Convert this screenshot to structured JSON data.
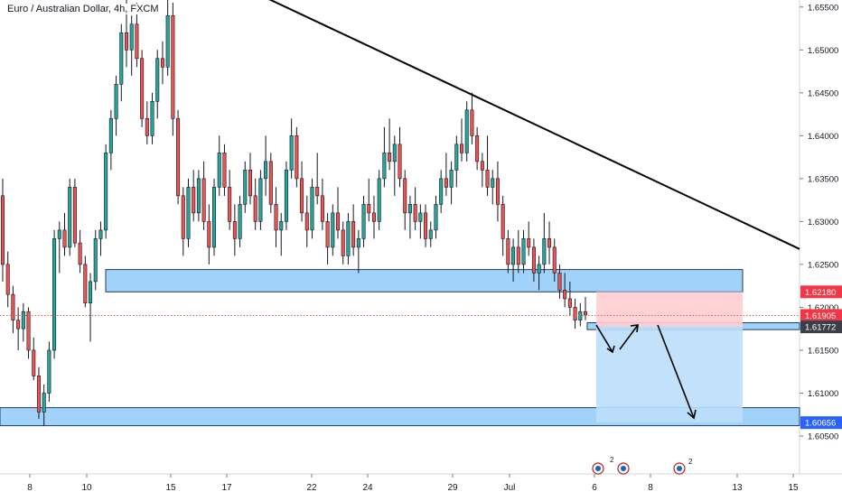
{
  "header": {
    "symbol_title": "Euro / Australian Dollar, 4h, FXCM"
  },
  "colors": {
    "up": "#26a69a",
    "down": "#ef5350",
    "zone_fill": "#90caf9",
    "zone_stroke": "#1e3a5f",
    "stop_fill": "#ffcdd2",
    "target_fill": "#bbdefb",
    "badge_red": "#f23645",
    "badge_dark": "#3b3f47",
    "badge_blue": "#2962ff",
    "trendline": "#000000"
  },
  "chart_data": {
    "type": "candlestick",
    "instrument": "EURAUD",
    "timeframe": "4h",
    "ylim": [
      1.6015,
      1.6555
    ],
    "price_axis": {
      "ticks": [
        "1.65500",
        "1.65000",
        "1.64500",
        "1.64000",
        "1.63500",
        "1.63000",
        "1.62500",
        "1.62000",
        "1.61500",
        "1.61000",
        "1.60500"
      ],
      "badges": [
        {
          "label": "1.62180",
          "value": 1.6218,
          "style": "red"
        },
        {
          "label": "1.61905",
          "value": 1.61905,
          "style": "red"
        },
        {
          "label": "1.61772",
          "value": 1.61772,
          "style": "dark"
        },
        {
          "label": "1.60656",
          "value": 1.60656,
          "style": "blue"
        }
      ]
    },
    "time_axis": {
      "labels": [
        "8",
        "10",
        "15",
        "17",
        "22",
        "24",
        "29",
        "Jul",
        "6",
        "8",
        "13",
        "15"
      ]
    },
    "current_price": 1.61905,
    "zones": [
      {
        "name": "resistance-zone",
        "from": 1.6218,
        "to": 1.6244
      },
      {
        "name": "entry-zone",
        "from": 1.6174,
        "to": 1.6182
      },
      {
        "name": "support-zone",
        "from": 1.6062,
        "to": 1.6083
      }
    ],
    "position": {
      "entry": 1.61772,
      "stop": 1.6218,
      "target": 1.60656
    },
    "trendline": {
      "from": 1.6563,
      "to": 1.6268
    },
    "event_markers": [
      "2",
      "2"
    ],
    "ohlc_sequence": [
      [
        1.633,
        1.635,
        1.623,
        1.625
      ],
      [
        1.625,
        1.6265,
        1.62,
        1.6215
      ],
      [
        1.6215,
        1.6225,
        1.617,
        1.6185
      ],
      [
        1.6185,
        1.62,
        1.615,
        1.6175
      ],
      [
        1.6175,
        1.6205,
        1.616,
        1.6195
      ],
      [
        1.6195,
        1.62,
        1.614,
        1.615
      ],
      [
        1.615,
        1.6165,
        1.6115,
        1.612
      ],
      [
        1.612,
        1.613,
        1.607,
        1.6078
      ],
      [
        1.6078,
        1.611,
        1.6062,
        1.61
      ],
      [
        1.61,
        1.616,
        1.609,
        1.615
      ],
      [
        1.615,
        1.629,
        1.614,
        1.628
      ],
      [
        1.628,
        1.63,
        1.624,
        1.629
      ],
      [
        1.629,
        1.631,
        1.626,
        1.627
      ],
      [
        1.627,
        1.635,
        1.626,
        1.634
      ],
      [
        1.634,
        1.635,
        1.627,
        1.6275
      ],
      [
        1.6275,
        1.629,
        1.624,
        1.625
      ],
      [
        1.625,
        1.626,
        1.62,
        1.6205
      ],
      [
        1.6205,
        1.624,
        1.616,
        1.623
      ],
      [
        1.623,
        1.629,
        1.622,
        1.628
      ],
      [
        1.628,
        1.63,
        1.626,
        1.629
      ],
      [
        1.629,
        1.639,
        1.628,
        1.638
      ],
      [
        1.638,
        1.643,
        1.636,
        1.642
      ],
      [
        1.642,
        1.647,
        1.64,
        1.646
      ],
      [
        1.646,
        1.653,
        1.644,
        1.652
      ],
      [
        1.652,
        1.656,
        1.648,
        1.65
      ],
      [
        1.65,
        1.654,
        1.647,
        1.653
      ],
      [
        1.653,
        1.6555,
        1.648,
        1.649
      ],
      [
        1.649,
        1.65,
        1.641,
        1.642
      ],
      [
        1.642,
        1.644,
        1.639,
        1.64
      ],
      [
        1.64,
        1.645,
        1.639,
        1.644
      ],
      [
        1.644,
        1.65,
        1.642,
        1.649
      ],
      [
        1.649,
        1.651,
        1.646,
        1.648
      ],
      [
        1.648,
        1.656,
        1.647,
        1.654
      ],
      [
        1.654,
        1.6555,
        1.64,
        1.642
      ],
      [
        1.642,
        1.643,
        1.632,
        1.633
      ],
      [
        1.633,
        1.634,
        1.626,
        1.628
      ],
      [
        1.628,
        1.635,
        1.627,
        1.634
      ],
      [
        1.634,
        1.636,
        1.63,
        1.631
      ],
      [
        1.631,
        1.636,
        1.63,
        1.635
      ],
      [
        1.635,
        1.637,
        1.629,
        1.63
      ],
      [
        1.63,
        1.632,
        1.625,
        1.627
      ],
      [
        1.627,
        1.635,
        1.626,
        1.634
      ],
      [
        1.634,
        1.64,
        1.633,
        1.638
      ],
      [
        1.638,
        1.639,
        1.633,
        1.634
      ],
      [
        1.634,
        1.636,
        1.629,
        1.63
      ],
      [
        1.63,
        1.632,
        1.626,
        1.628
      ],
      [
        1.628,
        1.633,
        1.627,
        1.632
      ],
      [
        1.632,
        1.637,
        1.631,
        1.636
      ],
      [
        1.636,
        1.638,
        1.632,
        1.633
      ],
      [
        1.633,
        1.635,
        1.629,
        1.63
      ],
      [
        1.63,
        1.636,
        1.629,
        1.635
      ],
      [
        1.635,
        1.64,
        1.633,
        1.637
      ],
      [
        1.637,
        1.638,
        1.631,
        1.632
      ],
      [
        1.632,
        1.634,
        1.627,
        1.629
      ],
      [
        1.629,
        1.631,
        1.626,
        1.63
      ],
      [
        1.63,
        1.637,
        1.629,
        1.636
      ],
      [
        1.636,
        1.642,
        1.635,
        1.64
      ],
      [
        1.64,
        1.641,
        1.634,
        1.635
      ],
      [
        1.635,
        1.637,
        1.63,
        1.631
      ],
      [
        1.631,
        1.633,
        1.627,
        1.629
      ],
      [
        1.629,
        1.635,
        1.628,
        1.634
      ],
      [
        1.634,
        1.638,
        1.632,
        1.633
      ],
      [
        1.633,
        1.635,
        1.629,
        1.63
      ],
      [
        1.63,
        1.631,
        1.625,
        1.627
      ],
      [
        1.627,
        1.632,
        1.626,
        1.631
      ],
      [
        1.631,
        1.634,
        1.628,
        1.629
      ],
      [
        1.629,
        1.63,
        1.625,
        1.626
      ],
      [
        1.626,
        1.631,
        1.625,
        1.63
      ],
      [
        1.63,
        1.632,
        1.626,
        1.627
      ],
      [
        1.627,
        1.629,
        1.624,
        1.628
      ],
      [
        1.628,
        1.633,
        1.627,
        1.632
      ],
      [
        1.632,
        1.635,
        1.63,
        1.631
      ],
      [
        1.631,
        1.633,
        1.628,
        1.63
      ],
      [
        1.63,
        1.636,
        1.629,
        1.635
      ],
      [
        1.635,
        1.641,
        1.634,
        1.638
      ],
      [
        1.638,
        1.642,
        1.636,
        1.637
      ],
      [
        1.637,
        1.64,
        1.633,
        1.639
      ],
      [
        1.639,
        1.641,
        1.634,
        1.635
      ],
      [
        1.635,
        1.636,
        1.629,
        1.631
      ],
      [
        1.631,
        1.633,
        1.628,
        1.632
      ],
      [
        1.632,
        1.634,
        1.629,
        1.63
      ],
      [
        1.63,
        1.632,
        1.628,
        1.631
      ],
      [
        1.631,
        1.632,
        1.627,
        1.628
      ],
      [
        1.628,
        1.63,
        1.627,
        1.629
      ],
      [
        1.629,
        1.633,
        1.628,
        1.632
      ],
      [
        1.632,
        1.636,
        1.631,
        1.635
      ],
      [
        1.635,
        1.638,
        1.633,
        1.634
      ],
      [
        1.634,
        1.637,
        1.632,
        1.636
      ],
      [
        1.636,
        1.64,
        1.634,
        1.639
      ],
      [
        1.639,
        1.642,
        1.637,
        1.638
      ],
      [
        1.638,
        1.644,
        1.637,
        1.643
      ],
      [
        1.643,
        1.645,
        1.639,
        1.64
      ],
      [
        1.64,
        1.641,
        1.636,
        1.637
      ],
      [
        1.637,
        1.638,
        1.634,
        1.636
      ],
      [
        1.636,
        1.64,
        1.633,
        1.634
      ],
      [
        1.634,
        1.636,
        1.632,
        1.635
      ],
      [
        1.635,
        1.637,
        1.63,
        1.632
      ],
      [
        1.632,
        1.633,
        1.626,
        1.628
      ],
      [
        1.628,
        1.629,
        1.624,
        1.625
      ],
      [
        1.625,
        1.628,
        1.623,
        1.627
      ],
      [
        1.627,
        1.629,
        1.624,
        1.625
      ],
      [
        1.625,
        1.629,
        1.624,
        1.628
      ],
      [
        1.628,
        1.63,
        1.626,
        1.627
      ],
      [
        1.627,
        1.628,
        1.623,
        1.624
      ],
      [
        1.624,
        1.626,
        1.622,
        1.625
      ],
      [
        1.625,
        1.631,
        1.624,
        1.628
      ],
      [
        1.628,
        1.63,
        1.625,
        1.627
      ],
      [
        1.627,
        1.628,
        1.623,
        1.624
      ],
      [
        1.624,
        1.625,
        1.621,
        1.622
      ],
      [
        1.622,
        1.624,
        1.62,
        1.621
      ],
      [
        1.621,
        1.623,
        1.619,
        1.62
      ],
      [
        1.62,
        1.621,
        1.6175,
        1.6185
      ],
      [
        1.6185,
        1.6205,
        1.6178,
        1.6195
      ],
      [
        1.6195,
        1.6212,
        1.6185,
        1.6191
      ]
    ]
  }
}
